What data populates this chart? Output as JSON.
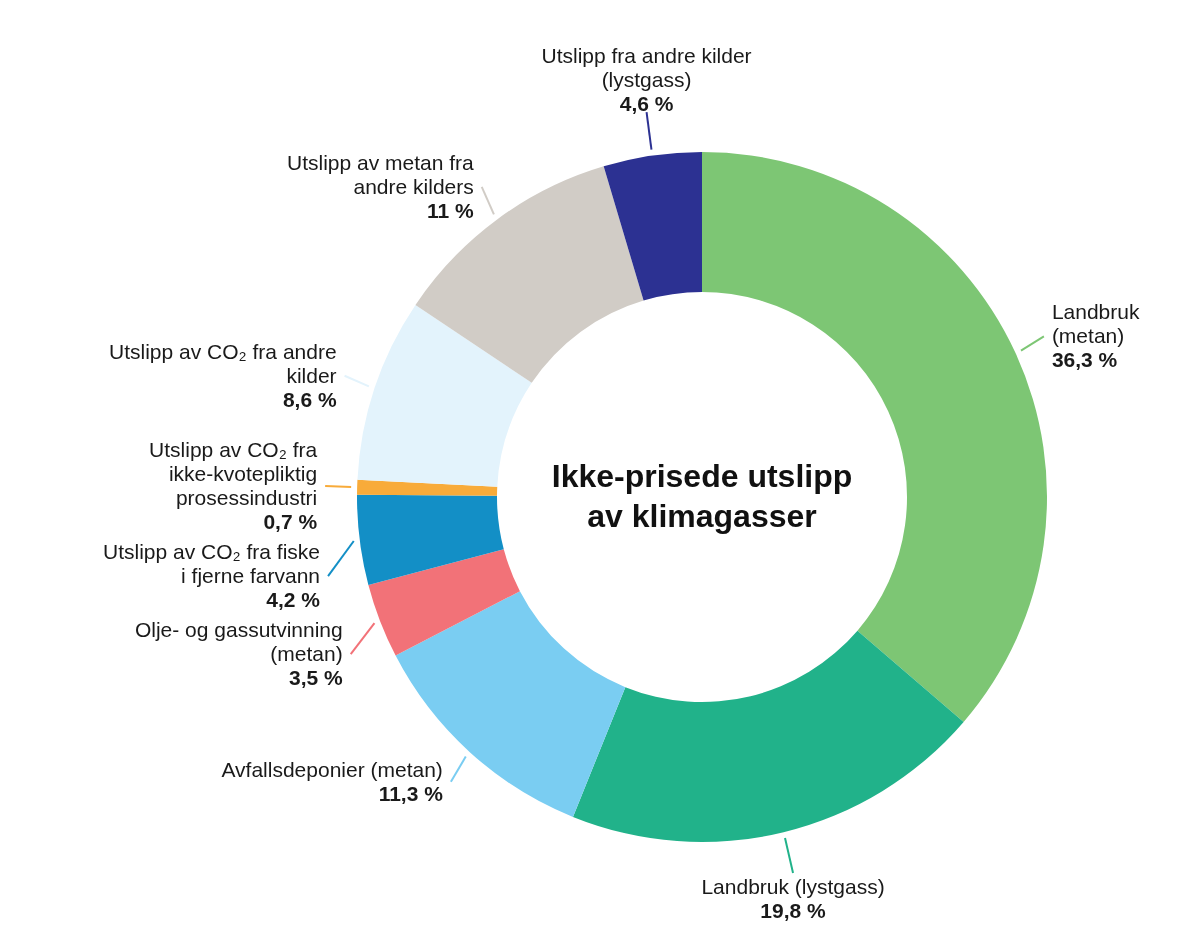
{
  "chart_data": {
    "type": "donut",
    "title": "Ikke-prisede utslipp av klimagasser",
    "categories": [
      "Landbruk (metan)",
      "Landbruk (lystgass)",
      "Avfallsdeponier (metan)",
      "Olje- og gassutvinning (metan)",
      "Utslipp av CO₂ fra fiske i fjerne farvann",
      "Utslipp av CO₂ fra ikke-kvotepliktig prosessindustri",
      "Utslipp av CO₂ fra andre kilder",
      "Utslipp av metan fra andre kilders",
      "Utslipp fra andre kilder (lystgass)"
    ],
    "values": [
      36.3,
      19.8,
      11.3,
      3.5,
      4.2,
      0.7,
      8.6,
      11,
      4.6
    ],
    "value_labels": [
      "36,3 %",
      "19,8 %",
      "11,3 %",
      "3,5 %",
      "4,2 %",
      "0,7 %",
      "8,6 %",
      "11 %",
      "4,6 %"
    ],
    "colors": [
      "#7dc674",
      "#21b28a",
      "#7acdf2",
      "#f27278",
      "#138fc6",
      "#f8ab3a",
      "#e3f3fc",
      "#d1ccc6",
      "#2c3192"
    ],
    "legend": false
  }
}
